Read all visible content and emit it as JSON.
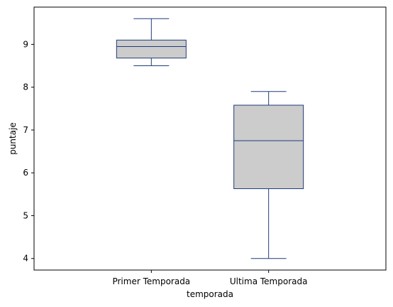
{
  "chart_data": {
    "type": "box",
    "title": "",
    "xlabel": "temporada",
    "ylabel": "puntaje",
    "categories": [
      "Primer Temporada",
      "Ultima Temporada"
    ],
    "boxes": [
      {
        "category": "Primer Temporada",
        "whisker_low": 8.5,
        "q1": 8.68,
        "median": 8.95,
        "q3": 9.1,
        "whisker_high": 9.6
      },
      {
        "category": "Ultima Temporada",
        "whisker_low": 4.0,
        "q1": 5.63,
        "median": 6.75,
        "q3": 7.58,
        "whisker_high": 7.9
      }
    ],
    "ylim": [
      3.73,
      9.87
    ],
    "yticks": [
      4,
      5,
      6,
      7,
      8,
      9
    ],
    "grid": false,
    "colors": {
      "box_fill": "#cccccc",
      "box_edge": "#1f3d7a",
      "axis": "#000000"
    }
  }
}
